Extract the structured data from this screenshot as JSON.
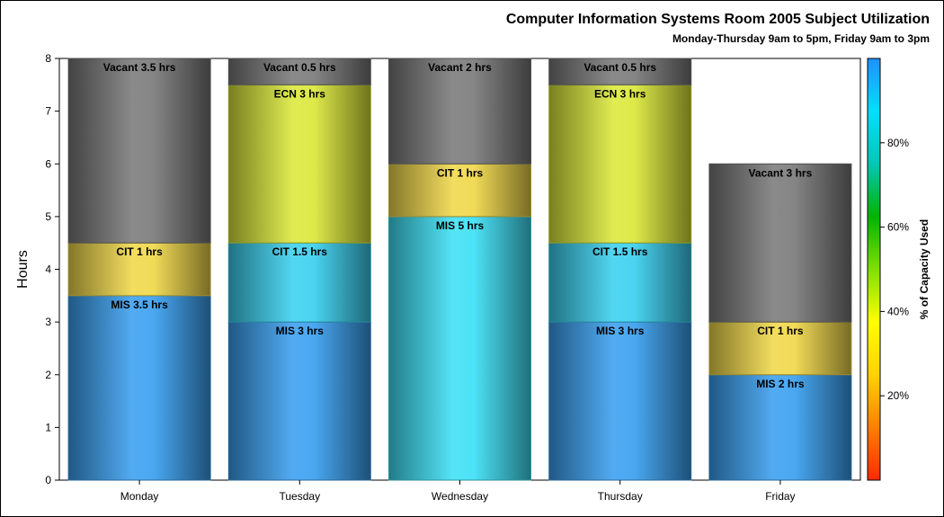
{
  "chart_data": {
    "type": "bar",
    "stacked": true,
    "title": "Computer Information Systems Room 2005 Subject Utilization",
    "subtitle": "Monday-Thursday 9am to 5pm, Friday 9am to 3pm",
    "ylabel": "Hours",
    "xlabel": "",
    "ylim": [
      0,
      8
    ],
    "yticks": [
      "0",
      "1",
      "2",
      "3",
      "4",
      "5",
      "6",
      "7",
      "8"
    ],
    "categories": [
      "Monday",
      "Tuesday",
      "Wednesday",
      "Thursday",
      "Friday"
    ],
    "segments": [
      [
        {
          "subject": "MIS",
          "hours": 3.5,
          "label": "MIS 3.5 hrs",
          "capacity_pct": 80
        },
        {
          "subject": "CIT",
          "hours": 1,
          "label": "CIT 1 hrs",
          "capacity_pct": 50
        },
        {
          "subject": "Vacant",
          "hours": 3.5,
          "label": "Vacant 3.5 hrs",
          "capacity_pct": 0
        }
      ],
      [
        {
          "subject": "MIS",
          "hours": 3,
          "label": "MIS 3 hrs",
          "capacity_pct": 80
        },
        {
          "subject": "CIT",
          "hours": 1.5,
          "label": "CIT 1.5 hrs",
          "capacity_pct": 85
        },
        {
          "subject": "ECN",
          "hours": 3,
          "label": "ECN 3 hrs",
          "capacity_pct": 55
        },
        {
          "subject": "Vacant",
          "hours": 0.5,
          "label": "Vacant 0.5 hrs",
          "capacity_pct": 0
        }
      ],
      [
        {
          "subject": "MIS",
          "hours": 5,
          "label": "MIS 5 hrs",
          "capacity_pct": 88
        },
        {
          "subject": "CIT",
          "hours": 1,
          "label": "CIT 1 hrs",
          "capacity_pct": 50
        },
        {
          "subject": "Vacant",
          "hours": 2,
          "label": "Vacant 2 hrs",
          "capacity_pct": 0
        }
      ],
      [
        {
          "subject": "MIS",
          "hours": 3,
          "label": "MIS 3 hrs",
          "capacity_pct": 80
        },
        {
          "subject": "CIT",
          "hours": 1.5,
          "label": "CIT 1.5 hrs",
          "capacity_pct": 85
        },
        {
          "subject": "ECN",
          "hours": 3,
          "label": "ECN 3 hrs",
          "capacity_pct": 55
        },
        {
          "subject": "Vacant",
          "hours": 0.5,
          "label": "Vacant 0.5 hrs",
          "capacity_pct": 0
        }
      ],
      [
        {
          "subject": "MIS",
          "hours": 2,
          "label": "MIS 2 hrs",
          "capacity_pct": 80
        },
        {
          "subject": "CIT",
          "hours": 1,
          "label": "CIT 1 hrs",
          "capacity_pct": 50
        },
        {
          "subject": "Vacant",
          "hours": 3,
          "label": "Vacant 3 hrs",
          "capacity_pct": 0
        }
      ]
    ],
    "colorbar": {
      "label": "% of Capacity Used",
      "ticks": [
        "20%",
        "40%",
        "60%",
        "80%"
      ],
      "tick_values": [
        20,
        40,
        60,
        80
      ],
      "range": [
        0,
        100
      ],
      "colors": [
        "#ff2a00",
        "#ff7f00",
        "#ffd200",
        "#ffff00",
        "#7fe000",
        "#00b400",
        "#00c8b4",
        "#00e0ff",
        "#1e90ff"
      ]
    },
    "colors": {
      "MIS": "#3aa0f0",
      "CIT_low": "#f0d84a",
      "CIT_high": "#3ad0ef",
      "ECN": "#dbe83a",
      "Vacant": "#7a7a7a",
      "MIS_wed": "#3ee0f5"
    },
    "grid": false,
    "legend": "right"
  }
}
